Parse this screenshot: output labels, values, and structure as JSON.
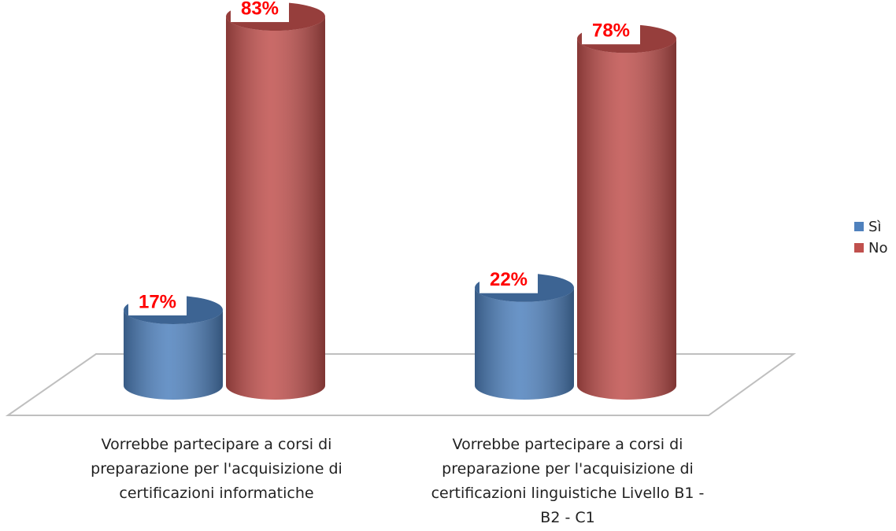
{
  "chart_data": {
    "type": "cylinder",
    "categories": [
      "Vorrebbe partecipare a corsi di preparazione per l'acquisizione di certificazioni informatiche",
      "Vorrebbe partecipare a corsi di preparazione per l'acquisizione di certificazioni linguistiche Livello B1 - B2 - C1"
    ],
    "series": [
      {
        "name": "Sì",
        "color": "#4f81bd",
        "values": [
          17,
          22
        ],
        "value_labels": [
          "17%",
          "22%"
        ]
      },
      {
        "name": "No",
        "color": "#c0504d",
        "values": [
          83,
          78
        ],
        "value_labels": [
          "83%",
          "78%"
        ]
      }
    ],
    "legend": "right"
  }
}
